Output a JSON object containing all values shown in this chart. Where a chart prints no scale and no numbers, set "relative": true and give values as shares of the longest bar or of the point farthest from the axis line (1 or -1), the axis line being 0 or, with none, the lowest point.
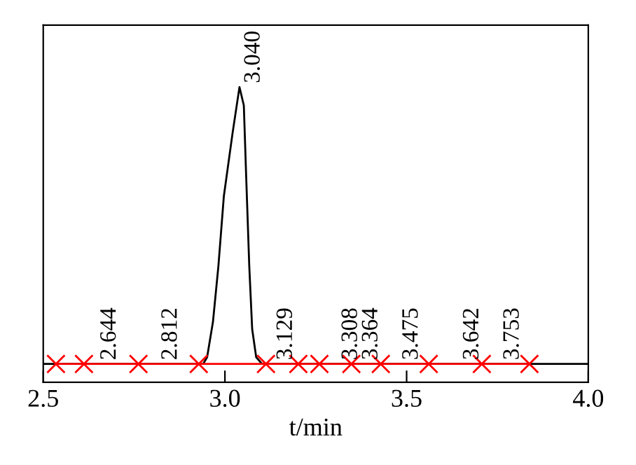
{
  "chart_data": {
    "type": "line",
    "relative": true,
    "xlabel": "t/min",
    "xlim": [
      2.5,
      4.0
    ],
    "xticks": [
      {
        "value": 2.5,
        "label": "2.5"
      },
      {
        "value": 3.0,
        "label": "3.0"
      },
      {
        "value": 3.5,
        "label": "3.5"
      },
      {
        "value": 4.0,
        "label": "4.0"
      }
    ],
    "tick_labels": "x",
    "grid": false,
    "series": [
      {
        "color": "#000000",
        "marker": "none",
        "x": [
          2.5,
          2.94,
          2.951,
          2.967,
          2.982,
          2.997,
          3.021,
          3.04,
          3.052,
          3.059,
          3.067,
          3.075,
          3.086,
          3.102,
          4.0
        ],
        "values": [
          0.062,
          0.062,
          0.085,
          0.204,
          0.393,
          0.63,
          0.844,
          1.0,
          0.938,
          0.678,
          0.393,
          0.18,
          0.085,
          0.062,
          0.062
        ]
      },
      {
        "color": "#ff0000",
        "marker": "cross",
        "x": [
          2.535,
          2.612,
          2.762,
          2.928,
          3.113,
          3.202,
          3.26,
          3.348,
          3.429,
          3.561,
          3.707,
          3.838
        ],
        "values": [
          0.062,
          0.062,
          0.062,
          0.062,
          0.062,
          0.062,
          0.062,
          0.062,
          0.062,
          0.062,
          0.062,
          0.062
        ]
      }
    ],
    "annotations": [
      {
        "text": "2.644",
        "x": 2.644,
        "y": 0.062
      },
      {
        "text": "2.812",
        "x": 2.812,
        "y": 0.062
      },
      {
        "text": "3.040",
        "x": 3.04,
        "y": 1.0
      },
      {
        "text": "3.129",
        "x": 3.129,
        "y": 0.062
      },
      {
        "text": "3.308",
        "x": 3.308,
        "y": 0.062
      },
      {
        "text": "3.364",
        "x": 3.364,
        "y": 0.062
      },
      {
        "text": "3.475",
        "x": 3.475,
        "y": 0.062
      },
      {
        "text": "3.642",
        "x": 3.642,
        "y": 0.062
      },
      {
        "text": "3.753",
        "x": 3.753,
        "y": 0.062
      }
    ]
  }
}
